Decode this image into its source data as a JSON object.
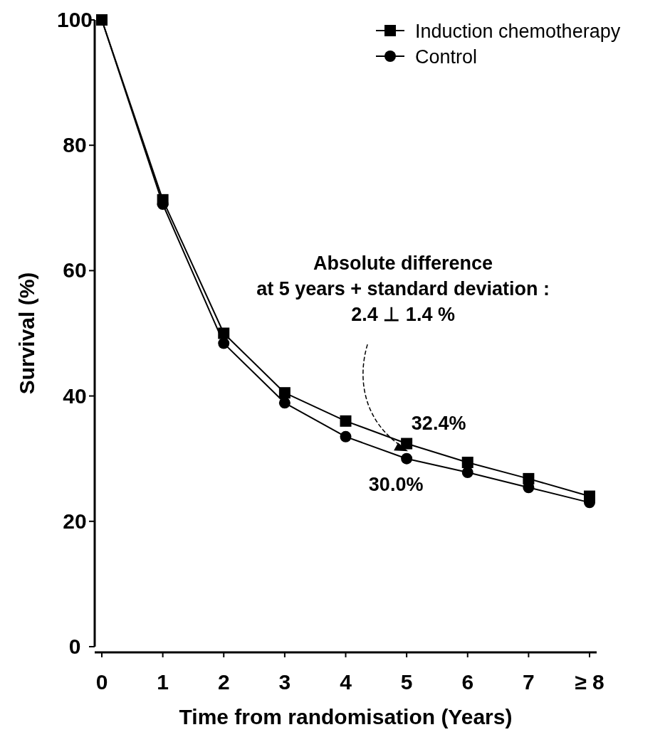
{
  "chart_data": {
    "type": "line",
    "xlabel": "Time from randomisation (Years)",
    "ylabel": "Survival (%)",
    "categories": [
      "0",
      "1",
      "2",
      "3",
      "4",
      "5",
      "6",
      "7",
      "≥ 8"
    ],
    "series": [
      {
        "name": "Induction chemotherapy",
        "color": "#000000",
        "marker": "square",
        "values": [
          100,
          71.3,
          50,
          40.5,
          36,
          32.4,
          29.4,
          26.8,
          24
        ]
      },
      {
        "name": "Control",
        "color": "#000000",
        "marker": "circle",
        "values": [
          100,
          70.6,
          48.4,
          38.9,
          33.5,
          30.0,
          27.8,
          25.4,
          23
        ]
      }
    ],
    "ylim": [
      0,
      100
    ],
    "yticks": [
      0,
      20,
      40,
      60,
      80,
      100
    ],
    "legend": "top right",
    "grid": false,
    "annotations": [
      {
        "text": "Absolute difference\nat 5 years +  standard deviation :\n2.4 ⊥ 1.4 %",
        "x": "5",
        "y": 31.2
      },
      {
        "text": "32.4%",
        "x": "5",
        "y": 32.4
      },
      {
        "text": "30.0%",
        "x": "5",
        "y": 30.0
      }
    ]
  }
}
